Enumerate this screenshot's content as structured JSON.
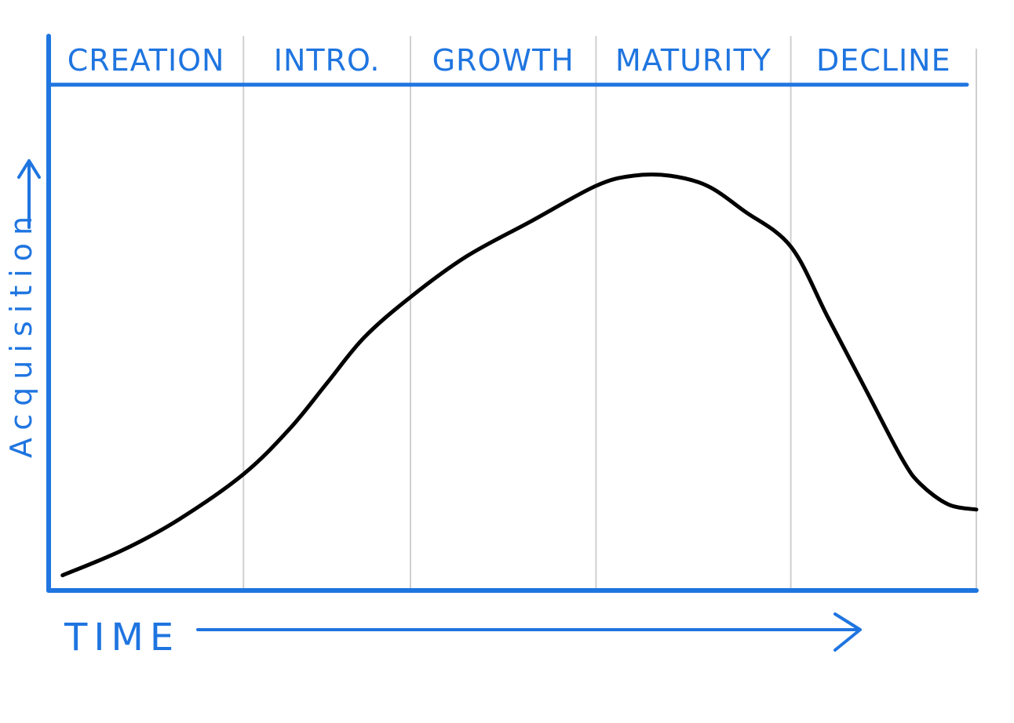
{
  "chart_data": {
    "type": "line",
    "title": "",
    "xlabel": "TIME",
    "ylabel": "Acquisition",
    "stages": [
      {
        "name": "CREATION",
        "range": [
          0,
          21
        ]
      },
      {
        "name": "INTRO.",
        "range": [
          21,
          39
        ]
      },
      {
        "name": "GROWTH",
        "range": [
          39,
          59
        ]
      },
      {
        "name": "MATURITY",
        "range": [
          59,
          80
        ]
      },
      {
        "name": "DECLINE",
        "range": [
          80,
          100
        ]
      }
    ],
    "series": [
      {
        "x": [
          1.5,
          8,
          14,
          21,
          26,
          30,
          34,
          39,
          45,
          52,
          59,
          63,
          67,
          71,
          75,
          80,
          84,
          88,
          92,
          94,
          97,
          100
        ],
        "y": [
          3,
          8,
          14,
          23,
          32,
          41,
          50,
          58,
          66,
          73,
          80,
          82,
          82,
          80,
          75,
          68,
          54,
          40,
          26,
          21,
          17,
          16
        ]
      }
    ],
    "xlim": [
      0,
      100
    ],
    "ylim": [
      0,
      100
    ],
    "grid": "vertical stage dividers",
    "colors": {
      "axis": "#1f75e0",
      "curve": "#000000",
      "divider": "#cfcfcf"
    }
  }
}
